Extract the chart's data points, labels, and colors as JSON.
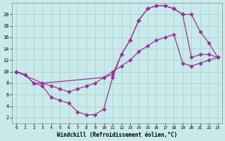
{
  "bg_color": "#c8eaea",
  "line_color": "#993399",
  "grid_color": "#aacccc",
  "xlabel": "Windchill (Refroidissement éolien,°C)",
  "xlim_min": -0.5,
  "xlim_max": 23.5,
  "ylim_min": 1.0,
  "ylim_max": 22.0,
  "xticks": [
    0,
    1,
    2,
    3,
    4,
    5,
    6,
    7,
    8,
    9,
    10,
    11,
    12,
    13,
    14,
    15,
    16,
    17,
    18,
    19,
    20,
    21,
    22,
    23
  ],
  "yticks": [
    2,
    4,
    6,
    8,
    10,
    12,
    14,
    16,
    18,
    20
  ],
  "curve1_x": [
    0,
    1,
    2,
    3,
    4,
    5,
    6,
    7,
    8,
    9,
    10,
    11,
    12,
    13,
    14,
    15,
    16,
    17,
    18,
    19,
    20,
    21,
    22,
    23
  ],
  "curve1_y": [
    10,
    9.5,
    8.0,
    7.5,
    5.5,
    5.0,
    4.5,
    3.0,
    2.5,
    2.5,
    3.5,
    9.0,
    13.0,
    15.5,
    19.0,
    21.0,
    21.5,
    21.5,
    21.0,
    20.0,
    12.5,
    13.0,
    13.0,
    12.5
  ],
  "curve2_x": [
    0,
    1,
    2,
    3,
    4,
    5,
    6,
    7,
    8,
    9,
    10,
    11,
    12,
    13,
    14,
    15,
    16,
    17,
    18,
    19,
    20,
    21,
    22,
    23
  ],
  "curve2_y": [
    10,
    9.5,
    8.0,
    8.0,
    7.5,
    7.0,
    6.5,
    7.0,
    7.5,
    8.0,
    9.0,
    10.0,
    11.0,
    12.0,
    13.5,
    14.5,
    15.5,
    16.0,
    16.5,
    11.5,
    11.0,
    11.5,
    12.0,
    12.5
  ],
  "curve3_x": [
    0,
    3,
    10,
    11,
    12,
    13,
    14,
    15,
    16,
    17,
    18,
    19,
    20,
    21,
    22,
    23
  ],
  "curve3_y": [
    10,
    8.0,
    9.0,
    9.5,
    13.0,
    15.5,
    19.0,
    21.0,
    21.5,
    21.5,
    21.0,
    20.0,
    20.0,
    17.0,
    15.0,
    12.5
  ],
  "marker_size": 2.8,
  "line_width": 0.9,
  "tick_fontsize_x": 4.5,
  "tick_fontsize_y": 5.0,
  "xlabel_fontsize": 5.5
}
